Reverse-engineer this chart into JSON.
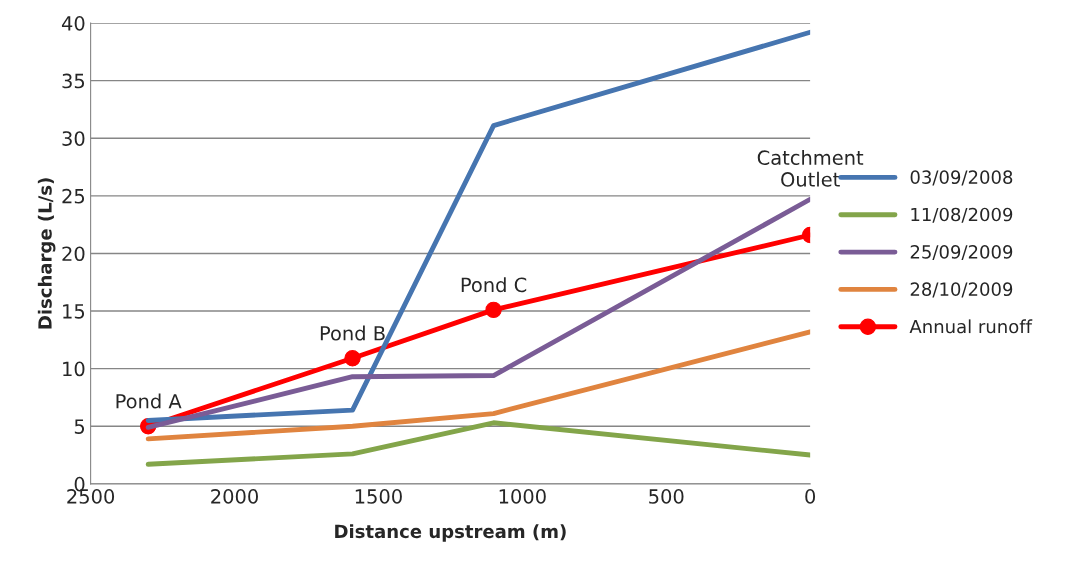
{
  "chart_data": {
    "type": "line",
    "xlabel": "Distance upstream (m)",
    "ylabel": "Discharge (L/s)",
    "x": [
      2300,
      1590,
      1100,
      0
    ],
    "series": [
      {
        "name": "03/09/2008",
        "color": "#4675b0",
        "values": [
          5.5,
          6.4,
          31.1,
          39.2
        ],
        "marker": "none"
      },
      {
        "name": "11/08/2009",
        "color": "#83a54a",
        "values": [
          1.7,
          2.6,
          5.3,
          2.5
        ],
        "marker": "none"
      },
      {
        "name": "25/09/2009",
        "color": "#7a5c96",
        "values": [
          4.9,
          9.3,
          9.4,
          24.7
        ],
        "marker": "none"
      },
      {
        "name": "28/10/2009",
        "color": "#e0843f",
        "values": [
          3.9,
          5.0,
          6.1,
          13.2
        ],
        "marker": "none"
      },
      {
        "name": "Annual runoff",
        "color": "#ff0000",
        "values": [
          5.0,
          10.9,
          15.1,
          21.6
        ],
        "marker": "circle"
      }
    ],
    "annotations": [
      {
        "text": "Pond A",
        "x": 2300,
        "y": 5.0
      },
      {
        "text": "Pond B",
        "x": 1590,
        "y": 10.9
      },
      {
        "text": "Pond C",
        "x": 1100,
        "y": 15.1
      },
      {
        "text": "Catchment\nOutlet",
        "x": 0,
        "y": 21.6
      }
    ],
    "xlim": [
      2500,
      0
    ],
    "xticks": [
      2500,
      2000,
      1500,
      1000,
      500,
      0
    ],
    "ylim": [
      0,
      40
    ],
    "yticks": [
      0,
      5,
      10,
      15,
      20,
      25,
      30,
      35,
      40
    ],
    "grid": "y",
    "legend": "right",
    "line_style": "solid"
  }
}
